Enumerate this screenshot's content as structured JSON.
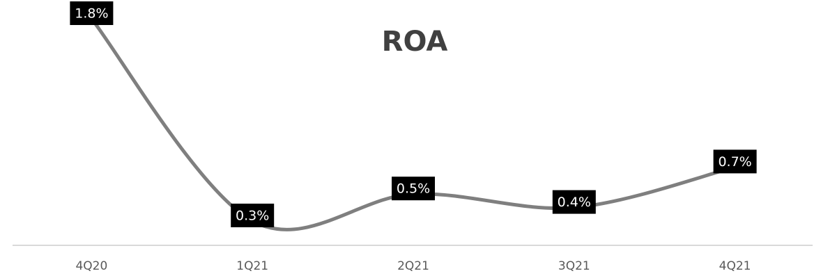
{
  "chart_data": {
    "type": "line",
    "title": "ROA",
    "categories": [
      "4Q20",
      "1Q21",
      "2Q21",
      "3Q21",
      "4Q21"
    ],
    "series": [
      {
        "name": "ROA",
        "color": "#7f7f7f",
        "values": [
          1.8,
          0.3,
          0.5,
          0.4,
          0.7
        ],
        "value_labels": [
          "1.8%",
          "0.3%",
          "0.5%",
          "0.4%",
          "0.7%"
        ]
      }
    ]
  }
}
